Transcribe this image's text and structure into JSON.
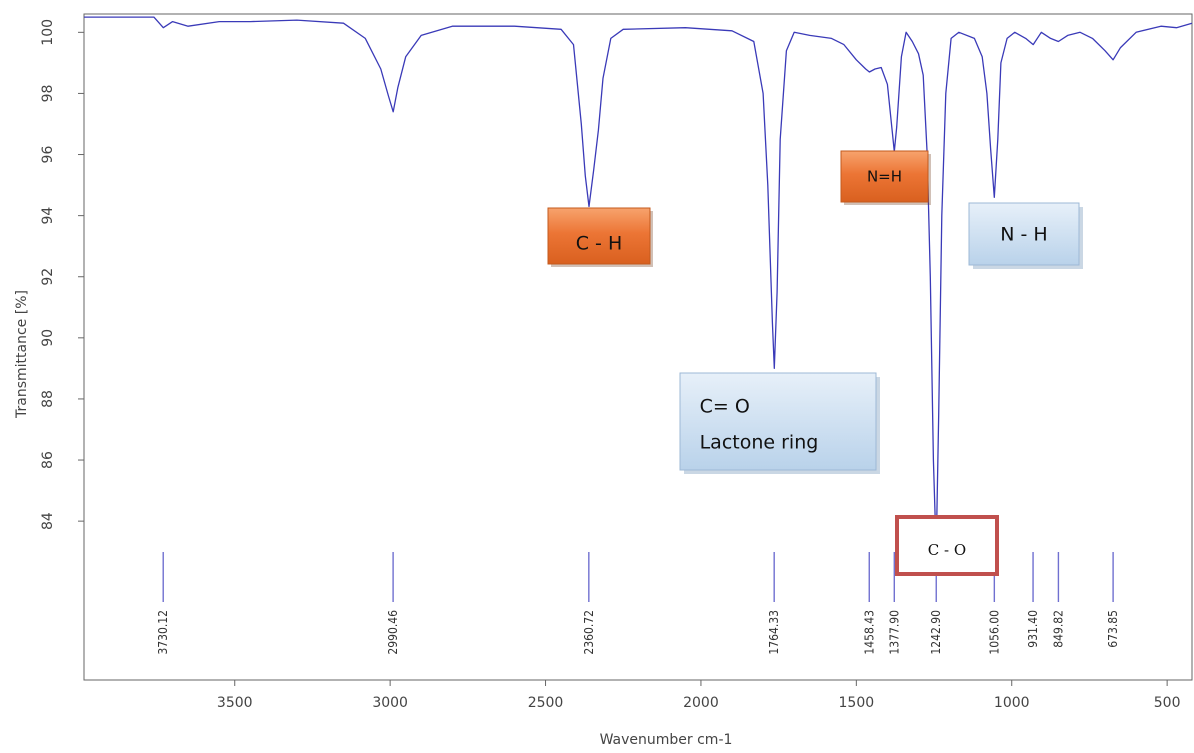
{
  "chart_data": {
    "type": "line",
    "xlabel": "Wavenumber cm-1",
    "ylabel": "Transmittance [%]",
    "xlim": [
      3985,
      420
    ],
    "ylim": [
      78.8,
      100.6
    ],
    "x_reversed": true,
    "xticks": [
      3500,
      3000,
      2500,
      2000,
      1500,
      1000,
      500
    ],
    "yticks": [
      84,
      86,
      88,
      90,
      92,
      94,
      96,
      98,
      100
    ],
    "grid": false,
    "series": [
      {
        "color": "#3a3ab8",
        "points": [
          [
            3985,
            100.5
          ],
          [
            3850,
            100.5
          ],
          [
            3760,
            100.5
          ],
          [
            3730,
            100.15
          ],
          [
            3700,
            100.35
          ],
          [
            3650,
            100.2
          ],
          [
            3550,
            100.35
          ],
          [
            3450,
            100.35
          ],
          [
            3300,
            100.4
          ],
          [
            3150,
            100.3
          ],
          [
            3080,
            99.8
          ],
          [
            3030,
            98.8
          ],
          [
            3005,
            97.9
          ],
          [
            2990,
            97.4
          ],
          [
            2975,
            98.2
          ],
          [
            2950,
            99.2
          ],
          [
            2900,
            99.9
          ],
          [
            2800,
            100.2
          ],
          [
            2600,
            100.2
          ],
          [
            2450,
            100.1
          ],
          [
            2410,
            99.6
          ],
          [
            2385,
            97.0
          ],
          [
            2372,
            95.3
          ],
          [
            2360,
            94.3
          ],
          [
            2345,
            95.5
          ],
          [
            2330,
            96.8
          ],
          [
            2315,
            98.5
          ],
          [
            2290,
            99.8
          ],
          [
            2250,
            100.1
          ],
          [
            2050,
            100.15
          ],
          [
            1900,
            100.05
          ],
          [
            1830,
            99.7
          ],
          [
            1800,
            98.0
          ],
          [
            1785,
            95.0
          ],
          [
            1770,
            90.5
          ],
          [
            1764,
            89.0
          ],
          [
            1755,
            91.5
          ],
          [
            1745,
            96.5
          ],
          [
            1725,
            99.4
          ],
          [
            1700,
            100.0
          ],
          [
            1650,
            99.9
          ],
          [
            1580,
            99.8
          ],
          [
            1540,
            99.6
          ],
          [
            1500,
            99.1
          ],
          [
            1470,
            98.8
          ],
          [
            1458,
            98.7
          ],
          [
            1440,
            98.8
          ],
          [
            1420,
            98.85
          ],
          [
            1400,
            98.3
          ],
          [
            1385,
            96.8
          ],
          [
            1378,
            96.1
          ],
          [
            1370,
            96.9
          ],
          [
            1355,
            99.2
          ],
          [
            1340,
            100.0
          ],
          [
            1320,
            99.7
          ],
          [
            1300,
            99.3
          ],
          [
            1285,
            98.6
          ],
          [
            1272,
            96.0
          ],
          [
            1262,
            92.0
          ],
          [
            1252,
            86.0
          ],
          [
            1243,
            83.0
          ],
          [
            1235,
            87.5
          ],
          [
            1225,
            94.0
          ],
          [
            1212,
            98.0
          ],
          [
            1195,
            99.8
          ],
          [
            1170,
            100.0
          ],
          [
            1120,
            99.8
          ],
          [
            1095,
            99.2
          ],
          [
            1080,
            98.0
          ],
          [
            1068,
            96.2
          ],
          [
            1056,
            94.6
          ],
          [
            1045,
            96.5
          ],
          [
            1035,
            99.0
          ],
          [
            1015,
            99.8
          ],
          [
            990,
            100.0
          ],
          [
            955,
            99.8
          ],
          [
            931,
            99.6
          ],
          [
            905,
            100.0
          ],
          [
            875,
            99.8
          ],
          [
            850,
            99.7
          ],
          [
            820,
            99.9
          ],
          [
            780,
            100.0
          ],
          [
            740,
            99.8
          ],
          [
            700,
            99.4
          ],
          [
            674,
            99.1
          ],
          [
            650,
            99.5
          ],
          [
            600,
            100.0
          ],
          [
            520,
            100.2
          ],
          [
            470,
            100.15
          ],
          [
            420,
            100.3
          ]
        ]
      }
    ],
    "peak_labels": [
      "3730.12",
      "2990.46",
      "2360.72",
      "1764.33",
      "1458.43",
      "1377.90",
      "1242.90",
      "1056.00",
      "931.40",
      "849.82",
      "673.85"
    ],
    "peak_positions": [
      3730.12,
      2990.46,
      2360.72,
      1764.33,
      1458.43,
      1377.9,
      1242.9,
      1056.0,
      931.4,
      849.82,
      673.85
    ],
    "annotations": [
      {
        "id": "ch",
        "lines": [
          "C - H"
        ],
        "style": "orange",
        "near_x": 2360
      },
      {
        "id": "nh-double",
        "lines": [
          "N=H"
        ],
        "style": "orange",
        "near_x": 1378
      },
      {
        "id": "nh",
        "lines": [
          "N - H"
        ],
        "style": "blue",
        "near_x": 1056
      },
      {
        "id": "co-lactone",
        "lines": [
          "C= O",
          "Lactone ring"
        ],
        "style": "blue",
        "near_x": 1764
      },
      {
        "id": "co",
        "lines": [
          "C - O"
        ],
        "style": "red-outline",
        "near_x": 1243
      }
    ],
    "colors": {
      "line": "#3a3ab8",
      "peak_marker": "#7070d0",
      "orange": "#ee7a3c",
      "blue": "#c8dcef",
      "red_outline": "#c0504d"
    }
  }
}
